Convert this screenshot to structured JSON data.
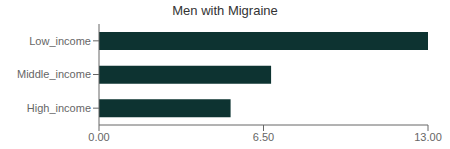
{
  "chart_data": {
    "type": "bar",
    "orientation": "horizontal",
    "title": "Men with Migraine",
    "categories": [
      "High_income",
      "Middle_income",
      "Low_income"
    ],
    "values": [
      5.2,
      6.8,
      13.0
    ],
    "color": "#0d3331",
    "xlim": [
      0,
      13.0
    ],
    "xticks": [
      {
        "value": 0,
        "label": "0.00"
      },
      {
        "value": 6.5,
        "label": "6.50"
      },
      {
        "value": 13.0,
        "label": "13.00"
      }
    ],
    "grid": false
  }
}
